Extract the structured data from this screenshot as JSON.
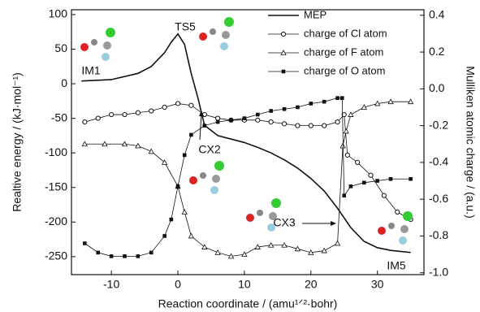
{
  "chart_data": {
    "type": "line",
    "x_label": "Reaction coordinate / (amu¹ᐟ²·bohr)",
    "y_label": "Realtive energy / (kJ·mol⁻¹)",
    "y2_label": "Mulliken atomic charge / (a.u.)",
    "xlim": [
      -16,
      37
    ],
    "xticks": [
      -10,
      0,
      10,
      20,
      30
    ],
    "ylim": [
      -276,
      107
    ],
    "yticks": [
      -250,
      -200,
      -150,
      -100,
      -50,
      0,
      50,
      100
    ],
    "y2lim": [
      -1.01,
      0.43
    ],
    "y2ticks": [
      {
        "value": -1.0,
        "label": "-1.0"
      },
      -0.8,
      -0.6,
      -0.4,
      -0.2,
      {
        "value": 0,
        "label": "0.0"
      },
      0.2,
      0.4
    ],
    "legend": "upper right",
    "annotations": [
      "TS5",
      "IM1",
      "CX2",
      "CX3",
      "IM5"
    ],
    "series": [
      {
        "name": "MEP",
        "color": "#111111",
        "marker": "none",
        "x": [
          -14.5,
          -10,
          -6,
          -4,
          -2,
          -1,
          0,
          1,
          2,
          3,
          4,
          6,
          8,
          10,
          12,
          14,
          16,
          18,
          20,
          22,
          24,
          26,
          28,
          30,
          32,
          35
        ],
        "values": [
          4,
          6,
          15,
          25,
          45,
          60,
          72,
          57,
          15,
          -20,
          -60,
          -75,
          -80,
          -85,
          -92,
          -100,
          -110,
          -122,
          -137,
          -155,
          -180,
          -208,
          -228,
          -237,
          -241,
          -244
        ]
      },
      {
        "name": "charge of Cl atom",
        "color": "#111111",
        "marker": "circle",
        "axis": "y2",
        "x": [
          -14,
          -12,
          -10,
          -8,
          -6,
          -4,
          -2,
          0,
          2,
          4,
          6,
          8,
          10,
          12,
          14,
          16,
          18,
          20,
          22,
          24,
          25,
          25.5,
          27,
          29,
          31,
          33,
          35
        ],
        "values": [
          -0.18,
          -0.16,
          -0.14,
          -0.14,
          -0.13,
          -0.12,
          -0.1,
          -0.08,
          -0.09,
          -0.14,
          -0.16,
          -0.17,
          -0.17,
          -0.17,
          -0.18,
          -0.19,
          -0.2,
          -0.2,
          -0.2,
          -0.18,
          -0.14,
          -0.36,
          -0.4,
          -0.47,
          -0.58,
          -0.67,
          -0.71
        ]
      },
      {
        "name": "charge of F atom",
        "color": "#111111",
        "marker": "triangle",
        "axis": "y2",
        "x": [
          -14,
          -11,
          -8,
          -6,
          -4,
          -2,
          0,
          1,
          2,
          4,
          6,
          8,
          10,
          12,
          14,
          16,
          18,
          20,
          22,
          24,
          24.8,
          25.3,
          26,
          28,
          30,
          32,
          35
        ],
        "values": [
          -0.3,
          -0.3,
          -0.3,
          -0.31,
          -0.34,
          -0.4,
          -0.53,
          -0.67,
          -0.8,
          -0.86,
          -0.89,
          -0.91,
          -0.9,
          -0.86,
          -0.85,
          -0.85,
          -0.87,
          -0.89,
          -0.88,
          -0.84,
          -0.31,
          -0.23,
          -0.14,
          -0.1,
          -0.08,
          -0.07,
          -0.07
        ]
      },
      {
        "name": "charge of O atom",
        "color": "#111111",
        "marker": "square",
        "axis": "y2",
        "x": [
          -14,
          -12,
          -10,
          -8,
          -6,
          -4,
          -2,
          -1,
          0,
          1,
          2,
          4,
          6,
          8,
          10,
          12,
          14,
          16,
          18,
          20,
          22,
          24,
          24.7,
          25,
          26,
          28,
          30,
          32,
          35
        ],
        "values": [
          -0.84,
          -0.89,
          -0.91,
          -0.91,
          -0.91,
          -0.89,
          -0.8,
          -0.71,
          -0.53,
          -0.36,
          -0.25,
          -0.2,
          -0.18,
          -0.17,
          -0.16,
          -0.14,
          -0.12,
          -0.11,
          -0.1,
          -0.08,
          -0.07,
          -0.05,
          -0.05,
          -0.58,
          -0.53,
          -0.51,
          -0.5,
          -0.49,
          -0.49
        ]
      }
    ]
  }
}
